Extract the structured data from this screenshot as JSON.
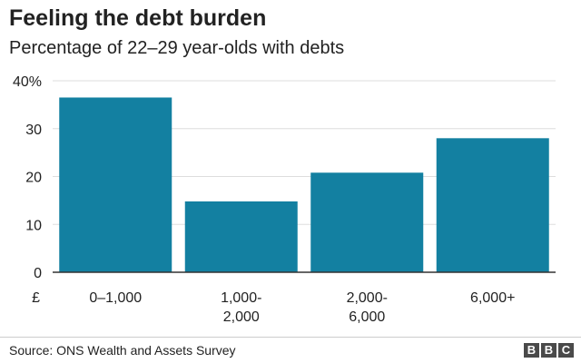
{
  "header": {
    "title": "Feeling the debt burden",
    "subtitle": "Percentage of 22–29 year-olds with debts"
  },
  "chart_data": {
    "type": "bar",
    "categories": [
      [
        "0–1,000"
      ],
      [
        "1,000-",
        "2,000"
      ],
      [
        "2,000-",
        "6,000"
      ],
      [
        "6,000+"
      ]
    ],
    "values": [
      36.5,
      14.8,
      20.8,
      28
    ],
    "ylim": [
      0,
      40
    ],
    "yticks": [
      0,
      10,
      20,
      30,
      40
    ],
    "ytick_labels": [
      "0",
      "10",
      "20",
      "30",
      "40%"
    ],
    "x_unit_label": "£",
    "bar_color": "#1380a1",
    "grid": true,
    "grid_color": "#dddddd",
    "axis_color": "#333333"
  },
  "footer": {
    "source": "Source: ONS Wealth and Assets Survey",
    "logo": [
      "B",
      "B",
      "C"
    ]
  }
}
